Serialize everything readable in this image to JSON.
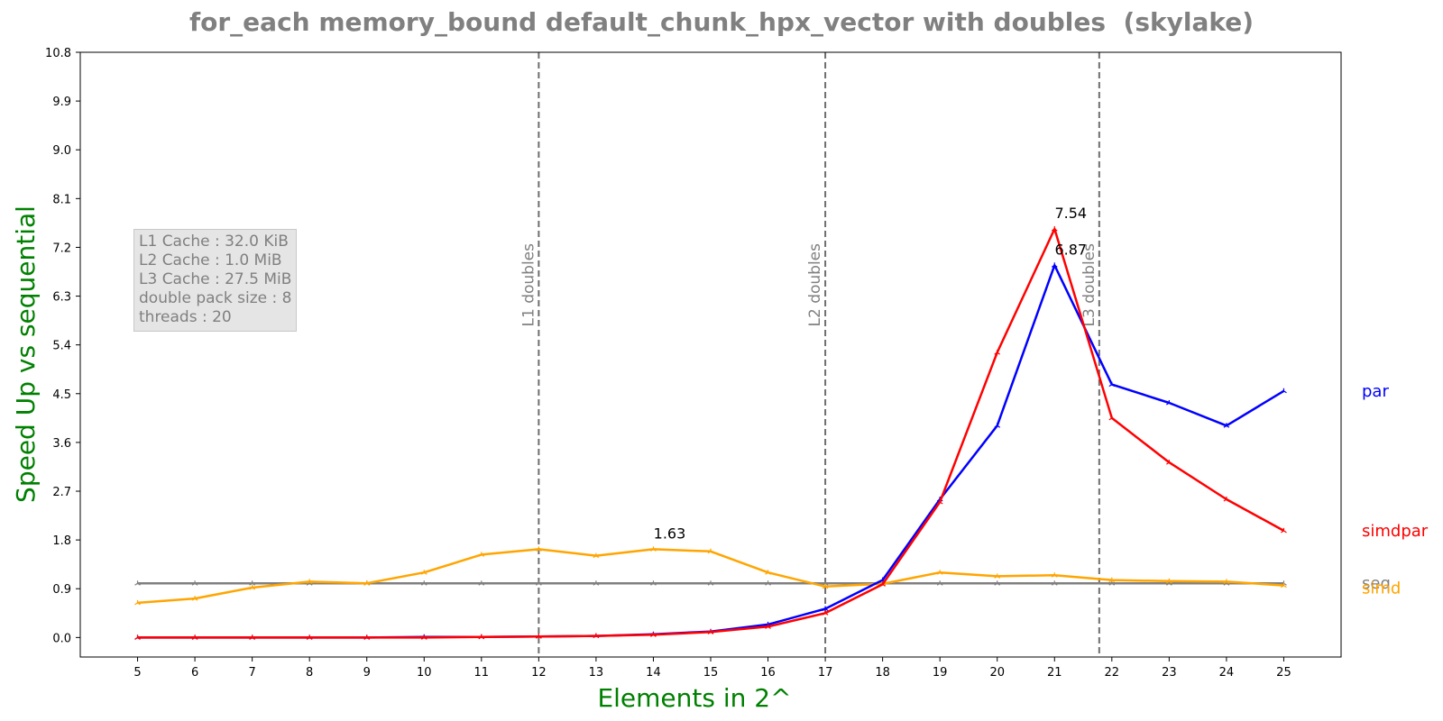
{
  "chart_data": {
    "type": "line",
    "title": "for_each memory_bound default_chunk_hpx_vector with doubles  (skylake)",
    "xlabel": "Elements in 2^",
    "ylabel": "Speed Up vs sequential",
    "x": [
      5,
      6,
      7,
      8,
      9,
      10,
      11,
      12,
      13,
      14,
      15,
      16,
      17,
      18,
      19,
      20,
      21,
      22,
      23,
      24,
      25
    ],
    "xlim": [
      4,
      26
    ],
    "ylim": [
      -0.36,
      10.8
    ],
    "yticks": [
      0.0,
      0.9,
      1.8,
      2.7,
      3.6,
      4.5,
      5.4,
      6.3,
      7.2,
      8.1,
      9.0,
      9.9,
      10.8
    ],
    "grid": false,
    "series": [
      {
        "name": "seq",
        "color": "#808080",
        "values": [
          1.0,
          1.0,
          1.0,
          1.0,
          1.0,
          1.0,
          1.0,
          1.0,
          1.0,
          1.0,
          1.0,
          1.0,
          1.0,
          1.0,
          1.0,
          1.0,
          1.0,
          1.0,
          1.0,
          1.0,
          1.0
        ]
      },
      {
        "name": "simd",
        "color": "#ffa500",
        "values": [
          0.64,
          0.72,
          0.92,
          1.03,
          1.0,
          1.2,
          1.53,
          1.63,
          1.51,
          1.63,
          1.59,
          1.2,
          0.94,
          0.99,
          1.2,
          1.13,
          1.15,
          1.06,
          1.04,
          1.03,
          0.96
        ]
      },
      {
        "name": "par",
        "color": "#0000ff",
        "values": [
          0.0,
          0.0,
          0.0,
          0.0,
          0.0,
          0.01,
          0.01,
          0.02,
          0.03,
          0.06,
          0.11,
          0.24,
          0.53,
          1.06,
          2.55,
          3.91,
          6.87,
          4.67,
          4.33,
          3.91,
          4.55
        ]
      },
      {
        "name": "simdpar",
        "color": "#ff0000",
        "values": [
          0.0,
          0.0,
          0.0,
          0.0,
          0.0,
          0.0,
          0.01,
          0.02,
          0.03,
          0.05,
          0.1,
          0.2,
          0.45,
          0.98,
          2.5,
          5.26,
          7.54,
          4.05,
          3.23,
          2.55,
          1.97
        ]
      }
    ],
    "vlines": [
      {
        "x": 12,
        "label": "L1 doubles"
      },
      {
        "x": 17,
        "label": "L2 doubles"
      },
      {
        "x": 21.78,
        "label": "L3 doubles"
      }
    ],
    "annotations": [
      {
        "x": 14,
        "y": 1.63,
        "text": "1.63"
      },
      {
        "x": 21,
        "y": 7.54,
        "text": "7.54"
      },
      {
        "x": 21,
        "y": 6.87,
        "text": "6.87"
      }
    ],
    "info_box": [
      "L1 Cache : 32.0 KiB",
      "L2 Cache : 1.0 MiB",
      "L3 Cache : 27.5 MiB",
      "double pack size : 8",
      "threads : 20"
    ]
  }
}
